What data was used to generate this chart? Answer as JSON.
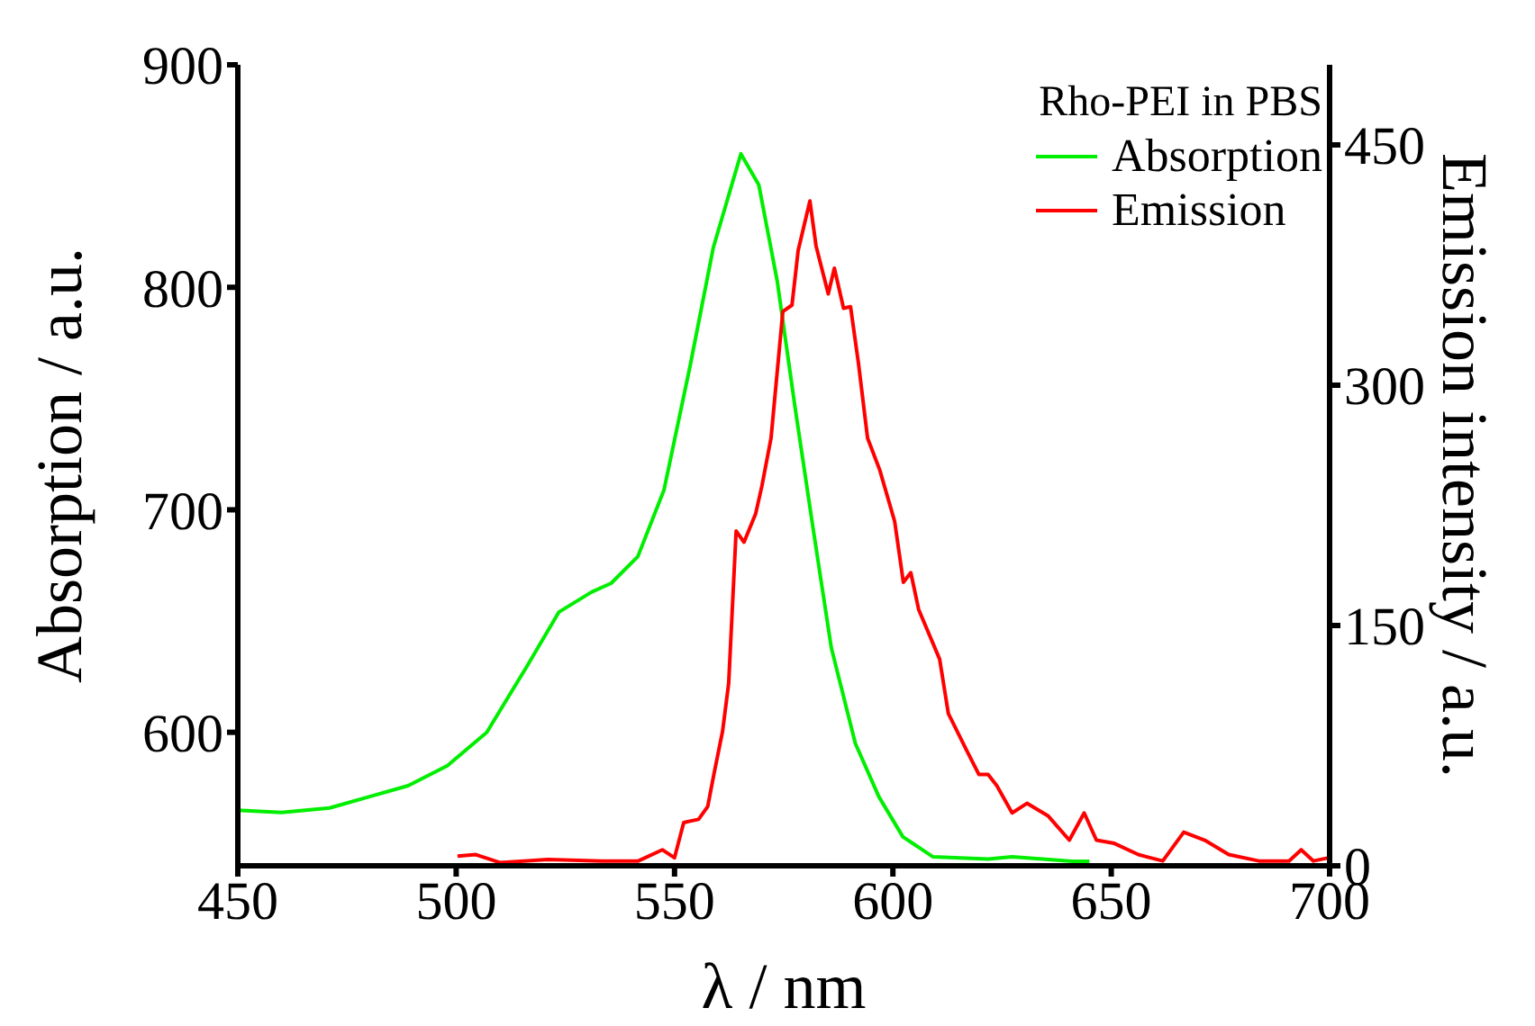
{
  "chart_data": {
    "type": "line",
    "xlabel": "λ / nm",
    "ylabel": "Absorption / a.u.",
    "y2label": "Emission intensity / a.u.",
    "legend_title": "Rho-PEI in PBS",
    "xlim": [
      450,
      700
    ],
    "xticks": [
      450,
      500,
      550,
      600,
      650,
      700
    ],
    "ylim": [
      540,
      900
    ],
    "yticks": [
      600,
      700,
      800,
      900
    ],
    "y2lim": [
      0,
      500
    ],
    "y2ticks": [
      0,
      150,
      300,
      450
    ],
    "grid": false,
    "legend": "top right",
    "marker": "none",
    "line_style": "solid",
    "series": [
      {
        "name": "Absorption",
        "color": "#00ee00",
        "x": [
          450,
          460,
          471,
          480,
          489,
          498,
          507,
          516,
          523.5,
          531,
          535.5,
          541.6,
          547.6,
          553.6,
          558.9,
          565.2,
          569.3,
          573.5,
          577.6,
          581.7,
          585.9,
          591.4,
          596.8,
          602.3,
          609.2,
          621.8,
          627.3,
          641.1,
          645
        ],
        "values": [
          565,
          564,
          566,
          571,
          576,
          585,
          600,
          629,
          654,
          663,
          667,
          679,
          709,
          765,
          818,
          860,
          846,
          803,
          746,
          692,
          638,
          595,
          571,
          553,
          544,
          543,
          544,
          542,
          542
        ]
      },
      {
        "name": "Emission",
        "color": "#ff0000",
        "axis": "y2",
        "x": [
          500.3,
          504.5,
          510,
          521,
          533.4,
          541.7,
          547.2,
          550,
          552.1,
          555.5,
          557.6,
          559,
          561,
          562.4,
          564.1,
          565.9,
          568.6,
          570,
          572.1,
          574.8,
          576.9,
          578.3,
          581,
          582.4,
          585.2,
          586.6,
          588.7,
          590.3,
          592.1,
          594.2,
          597,
          600.4,
          602.4,
          604.1,
          605.9,
          610.7,
          612.7,
          616.9,
          619.7,
          621.8,
          623.8,
          627.3,
          630.7,
          635.6,
          640.4,
          643.8,
          646.6,
          650.7,
          656.2,
          661.8,
          666.6,
          671.4,
          676.9,
          683.8,
          690.7,
          693.5,
          696.3,
          699.7
        ],
        "values": [
          6,
          7,
          2,
          4,
          3,
          3,
          10,
          5,
          27,
          29,
          37,
          57,
          84,
          114,
          209,
          202,
          220,
          237,
          267,
          346,
          350,
          384,
          415,
          387,
          357,
          373,
          348,
          349,
          314,
          267,
          247,
          215,
          177,
          183,
          160,
          129,
          95,
          72,
          57,
          57,
          50,
          33,
          39,
          31,
          16,
          33,
          16,
          14,
          7,
          3,
          21,
          16,
          7,
          3,
          3,
          10,
          3,
          5
        ]
      }
    ]
  }
}
